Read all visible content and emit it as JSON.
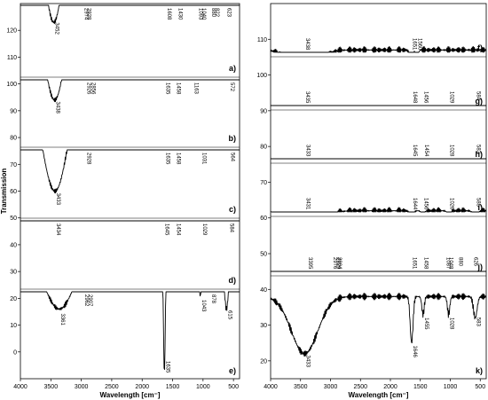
{
  "chart_data": [
    {
      "type": "line",
      "xlabel": "Wavelength [cm⁻]",
      "ylabel": "Transmission",
      "xlim": [
        4000,
        400
      ],
      "ylim": [
        -10,
        130
      ],
      "x_ticks": [
        4000,
        3500,
        3000,
        2500,
        2000,
        1500,
        1000,
        500
      ],
      "y_ticks": [
        0,
        10,
        20,
        30,
        40,
        50,
        60,
        70,
        80,
        90,
        100,
        110,
        120
      ],
      "series": [
        {
          "name": "a)",
          "offset": 105,
          "base": 104,
          "peaks": [
            [
              "3452",
              3452,
              86,
              220
            ],
            [
              "2974",
              2974,
              14,
              18
            ],
            [
              "2928",
              2928,
              16,
              18
            ],
            [
              "1608",
              1608,
              33,
              26
            ],
            [
              "1430",
              1430,
              25,
              26
            ],
            [
              "1093",
              1093,
              12,
              20
            ],
            [
              "1040",
              1040,
              14,
              16
            ],
            [
              "880",
              880,
              10,
              14
            ],
            [
              "822",
              822,
              9,
              12
            ],
            [
              "623",
              623,
              14,
              30
            ]
          ]
        },
        {
          "name": "b)",
          "offset": 80,
          "base": 76,
          "peaks": [
            [
              "3438",
              3438,
              62,
              220
            ],
            [
              "2926",
              2926,
              16,
              18
            ],
            [
              "2856",
              2856,
              12,
              16
            ],
            [
              "1635",
              1635,
              18,
              22
            ],
            [
              "1458",
              1458,
              10,
              20
            ],
            [
              "1163",
              1163,
              7,
              20
            ],
            [
              "572",
              572,
              12,
              30
            ]
          ]
        },
        {
          "name": "c)",
          "offset": 50,
          "base": 56,
          "peaks": [
            [
              "3433",
              3433,
              46,
              220
            ],
            [
              "2928",
              2928,
              8,
              20
            ],
            [
              "1635",
              1635,
              16,
              24
            ],
            [
              "1458",
              1458,
              6,
              20
            ],
            [
              "1031",
              1031,
              7,
              20
            ],
            [
              "564",
              564,
              10,
              30
            ]
          ]
        },
        {
          "name": "d)",
          "offset": 36,
          "base": 63,
          "peaks": [
            [
              "3434",
              3434,
              14,
              220
            ],
            [
              "1645",
              1645,
              12,
              24
            ],
            [
              "1454",
              1454,
              4,
              20
            ],
            [
              "1029",
              1029,
              5,
              20
            ],
            [
              "584",
              584,
              6,
              30
            ]
          ]
        },
        {
          "name": "e)",
          "offset": 0,
          "base": 40,
          "peaks": [
            [
              "3361",
              3361,
              24,
              260
            ],
            [
              "2962",
              2962,
              4,
              18
            ],
            [
              "2907",
              2907,
              3,
              18
            ],
            [
              "1635",
              1635,
              48,
              16
            ],
            [
              "1043",
              1043,
              20,
              12
            ],
            [
              "878",
              878,
              10,
              14
            ],
            [
              "615",
              615,
              24,
              40
            ]
          ]
        }
      ]
    },
    {
      "type": "line",
      "xlabel": "Wavelength [cm⁻]",
      "ylabel": "",
      "xlim": [
        4000,
        400
      ],
      "ylim": [
        15,
        120
      ],
      "x_ticks": [
        4000,
        3500,
        3000,
        2500,
        2000,
        1500,
        1000,
        500
      ],
      "y_ticks": [
        20,
        30,
        40,
        50,
        60,
        70,
        80,
        90,
        100,
        110
      ],
      "series": [
        {
          "name": "f)",
          "offset": 60,
          "base": 47,
          "peaks": [
            [
              "3438",
              3438,
              10,
              200
            ],
            [
              "1651",
              1651,
              6,
              24
            ],
            [
              "1560",
              1560,
              4,
              20
            ]
          ]
        },
        {
          "name": "g)",
          "offset": 35,
          "base": 47,
          "peaks": [
            [
              "3435",
              3435,
              16,
              220
            ],
            [
              "1648",
              1648,
              12,
              24
            ],
            [
              "1456",
              1456,
              5,
              20
            ],
            [
              "1029",
              1029,
              5,
              20
            ],
            [
              "584",
              584,
              6,
              30
            ]
          ]
        },
        {
          "name": "h)",
          "offset": 10,
          "base": 46,
          "peaks": [
            [
              "3433",
              3433,
              16,
              220
            ],
            [
              "1645",
              1645,
              10,
              24
            ],
            [
              "1454",
              1454,
              5,
              20
            ],
            [
              "1028",
              1028,
              5,
              20
            ],
            [
              "583",
              583,
              6,
              30
            ]
          ]
        },
        {
          "name": "i)",
          "offset": 0,
          "base": 62,
          "peaks": [
            [
              "3431",
              3431,
              13,
              220
            ],
            [
              "1644",
              1644,
              12,
              24
            ],
            [
              "1456",
              1456,
              5,
              20
            ],
            [
              "1026",
              1026,
              5,
              20
            ],
            [
              "585",
              585,
              6,
              30
            ]
          ]
        },
        {
          "name": "j)",
          "offset": -25,
          "base": 47,
          "peaks": [
            [
              "3395",
              3395,
              27,
              220
            ],
            [
              "2976",
              2976,
              9,
              18
            ],
            [
              "2929",
              2929,
              7,
              16
            ],
            [
              "2904",
              2904,
              6,
              16
            ],
            [
              "1651",
              1651,
              10,
              24
            ],
            [
              "1458",
              1458,
              7,
              20
            ],
            [
              "1087",
              1087,
              14,
              16
            ],
            [
              "1048",
              1048,
              14,
              14
            ],
            [
              "880",
              880,
              12,
              14
            ],
            [
              "626",
              626,
              8,
              30
            ]
          ]
        },
        {
          "name": "k)",
          "offset": -25,
          "base": 63,
          "peaks": [
            [
              "3433",
              3433,
              16,
              220
            ],
            [
              "1646",
              1646,
              13,
              24
            ],
            [
              "1455",
              1455,
              5,
              20
            ],
            [
              "1028",
              1028,
              5,
              20
            ],
            [
              "583",
              583,
              6,
              30
            ]
          ]
        }
      ]
    }
  ]
}
